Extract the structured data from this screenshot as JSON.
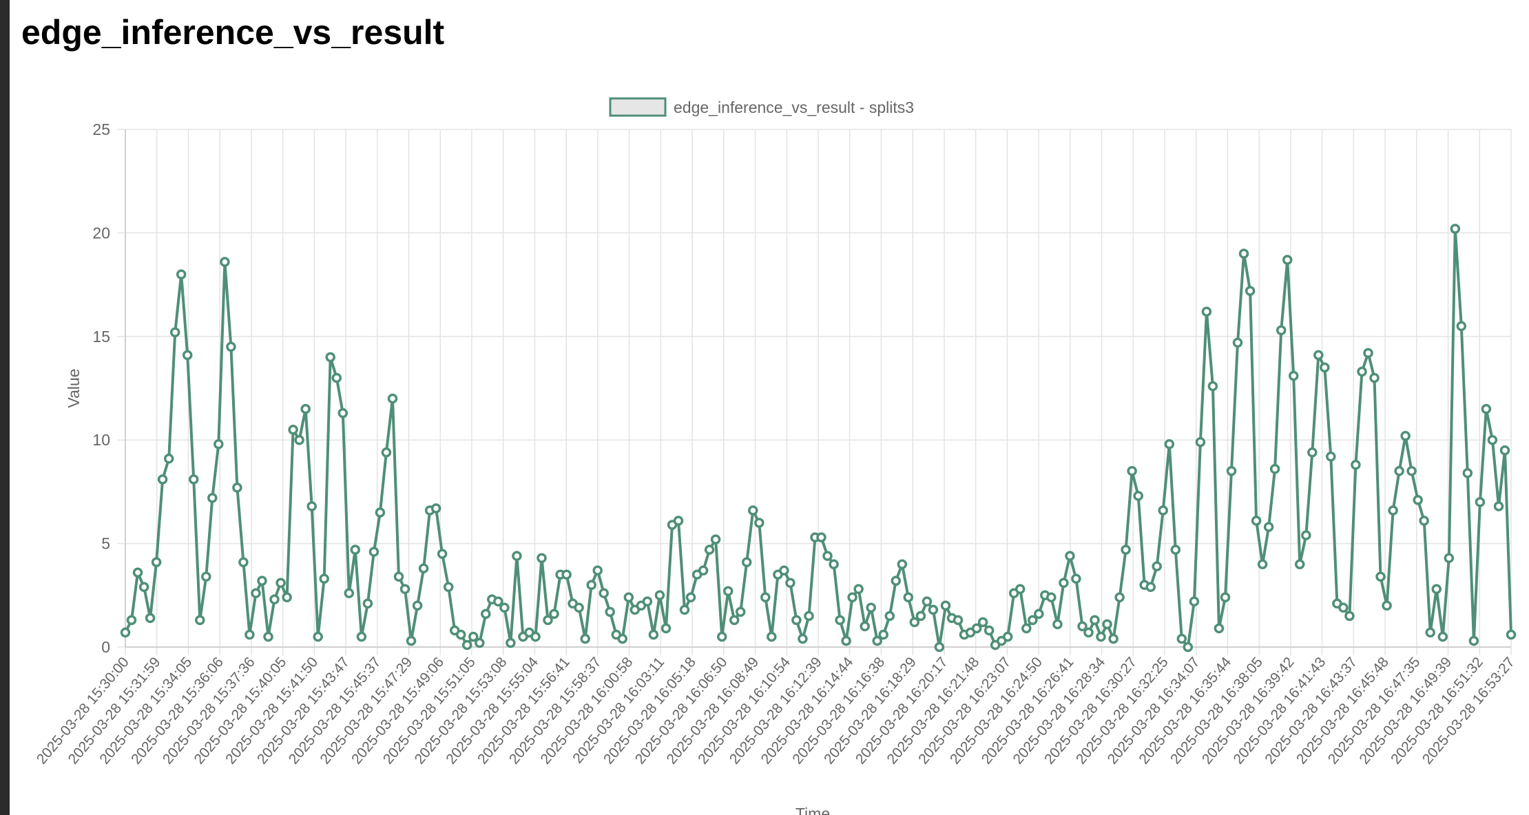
{
  "page": {
    "title": "edge_inference_vs_result"
  },
  "colors": {
    "series": "#4f8f77",
    "legend_fill": "#e6e6e6",
    "grid": "#e3e3e3"
  },
  "chart_data": {
    "type": "line",
    "title": "",
    "xlabel": "Time",
    "ylabel": "Value",
    "ylim": [
      0,
      25
    ],
    "y_ticks": [
      "0",
      "5",
      "10",
      "15",
      "20",
      "25"
    ],
    "grid": true,
    "legend_position": "top-center",
    "x_tick_labels": [
      "2025-03-28 15:30:00",
      "2025-03-28 15:31:59",
      "2025-03-28 15:34:05",
      "2025-03-28 15:36:06",
      "2025-03-28 15:37:36",
      "2025-03-28 15:40:05",
      "2025-03-28 15:41:50",
      "2025-03-28 15:43:47",
      "2025-03-28 15:45:37",
      "2025-03-28 15:47:29",
      "2025-03-28 15:49:06",
      "2025-03-28 15:51:05",
      "2025-03-28 15:53:08",
      "2025-03-28 15:55:04",
      "2025-03-28 15:56:41",
      "2025-03-28 15:58:37",
      "2025-03-28 16:00:58",
      "2025-03-28 16:03:11",
      "2025-03-28 16:05:18",
      "2025-03-28 16:06:50",
      "2025-03-28 16:08:49",
      "2025-03-28 16:10:54",
      "2025-03-28 16:12:39",
      "2025-03-28 16:14:44",
      "2025-03-28 16:16:38",
      "2025-03-28 16:18:29",
      "2025-03-28 16:20:17",
      "2025-03-28 16:21:48",
      "2025-03-28 16:23:07",
      "2025-03-28 16:24:50",
      "2025-03-28 16:26:41",
      "2025-03-28 16:28:34",
      "2025-03-28 16:30:27",
      "2025-03-28 16:32:25",
      "2025-03-28 16:34:07",
      "2025-03-28 16:35:44",
      "2025-03-28 16:38:05",
      "2025-03-28 16:39:42",
      "2025-03-28 16:41:43",
      "2025-03-28 16:43:37",
      "2025-03-28 16:45:48",
      "2025-03-28 16:47:35",
      "2025-03-28 16:49:39",
      "2025-03-28 16:51:32",
      "2025-03-28 16:53:27"
    ],
    "series": [
      {
        "name": "edge_inference_vs_result - splits3",
        "values": [
          0.7,
          1.3,
          3.6,
          2.9,
          1.4,
          4.1,
          8.1,
          9.1,
          15.2,
          18.0,
          14.1,
          8.1,
          1.3,
          3.4,
          7.2,
          9.8,
          18.6,
          14.5,
          7.7,
          4.1,
          0.6,
          2.6,
          3.2,
          0.5,
          2.3,
          3.1,
          2.4,
          10.5,
          10.0,
          11.5,
          6.8,
          0.5,
          3.3,
          14.0,
          13.0,
          11.3,
          2.6,
          4.7,
          0.5,
          2.1,
          4.6,
          6.5,
          9.4,
          12.0,
          3.4,
          2.8,
          0.3,
          2.0,
          3.8,
          6.6,
          6.7,
          4.5,
          2.9,
          0.8,
          0.6,
          0.1,
          0.5,
          0.2,
          1.6,
          2.3,
          2.2,
          1.9,
          0.2,
          4.4,
          0.5,
          0.7,
          0.5,
          4.3,
          1.3,
          1.6,
          3.5,
          3.5,
          2.1,
          1.9,
          0.4,
          3.0,
          3.7,
          2.6,
          1.7,
          0.6,
          0.4,
          2.4,
          1.8,
          2.0,
          2.2,
          0.6,
          2.5,
          0.9,
          5.9,
          6.1,
          1.8,
          2.4,
          3.5,
          3.7,
          4.7,
          5.2,
          0.5,
          2.7,
          1.3,
          1.7,
          4.1,
          6.6,
          6.0,
          2.4,
          0.5,
          3.5,
          3.7,
          3.1,
          1.3,
          0.4,
          1.5,
          5.3,
          5.3,
          4.4,
          4.0,
          1.3,
          0.3,
          2.4,
          2.8,
          1.0,
          1.9,
          0.3,
          0.6,
          1.5,
          3.2,
          4.0,
          2.4,
          1.2,
          1.5,
          2.2,
          1.8,
          0.0,
          2.0,
          1.4,
          1.3,
          0.6,
          0.7,
          0.9,
          1.2,
          0.8,
          0.1,
          0.3,
          0.5,
          2.6,
          2.8,
          0.9,
          1.3,
          1.6,
          2.5,
          2.4,
          1.1,
          3.1,
          4.4,
          3.3,
          1.0,
          0.7,
          1.3,
          0.5,
          1.1,
          0.4,
          2.4,
          4.7,
          8.5,
          7.3,
          3.0,
          2.9,
          3.9,
          6.6,
          9.8,
          4.7,
          0.4,
          0.0,
          2.2,
          9.9,
          16.2,
          12.6,
          0.9,
          2.4,
          8.5,
          14.7,
          19.0,
          17.2,
          6.1,
          4.0,
          5.8,
          8.6,
          15.3,
          18.7,
          13.1,
          4.0,
          5.4,
          9.4,
          14.1,
          13.5,
          9.2,
          2.1,
          1.9,
          1.5,
          8.8,
          13.3,
          14.2,
          13.0,
          3.4,
          2.0,
          6.6,
          8.5,
          10.2,
          8.5,
          7.1,
          6.1,
          0.7,
          2.8,
          0.5,
          4.3,
          20.2,
          15.5,
          8.4,
          0.3,
          7.0,
          11.5,
          10.0,
          6.8,
          9.5,
          0.6
        ]
      }
    ]
  }
}
